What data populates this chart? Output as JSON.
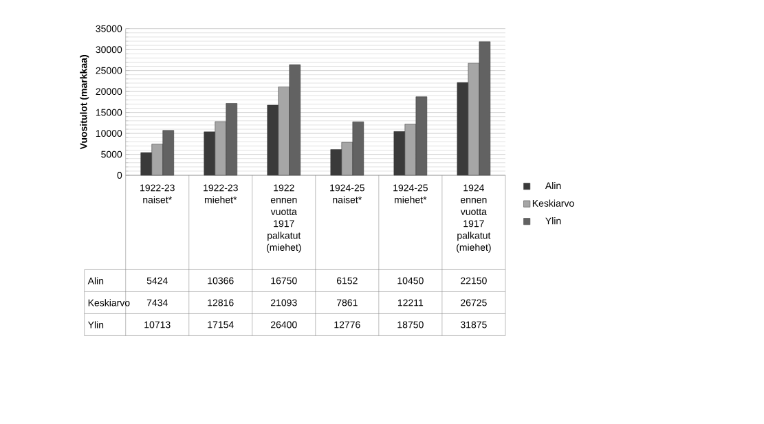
{
  "chart_data": {
    "type": "bar",
    "ylabel": "Vuositulot (markkaa)",
    "categories": [
      "1922-23 naiset*",
      "1922-23 miehet*",
      "1922 ennen vuotta 1917 palkatut (miehet)",
      "1924-25 naiset*",
      "1924-25 miehet*",
      "1924 ennen vuotta 1917 palkatut (miehet)"
    ],
    "series": [
      {
        "name": "Alin",
        "color": "#3a3a3a",
        "values": [
          5424,
          10366,
          16750,
          6152,
          10450,
          22150
        ]
      },
      {
        "name": "Keskiarvo",
        "color": "#a6a6a6",
        "values": [
          7434,
          12816,
          21093,
          7861,
          12211,
          26725
        ]
      },
      {
        "name": "Ylin",
        "color": "#626262",
        "values": [
          10713,
          17154,
          26400,
          12776,
          18750,
          31875
        ]
      }
    ],
    "ylim": [
      0,
      35000
    ],
    "yticks": [
      0,
      5000,
      10000,
      15000,
      20000,
      25000,
      30000,
      35000
    ],
    "grid": "y",
    "legend": "right",
    "data_labels": true
  }
}
